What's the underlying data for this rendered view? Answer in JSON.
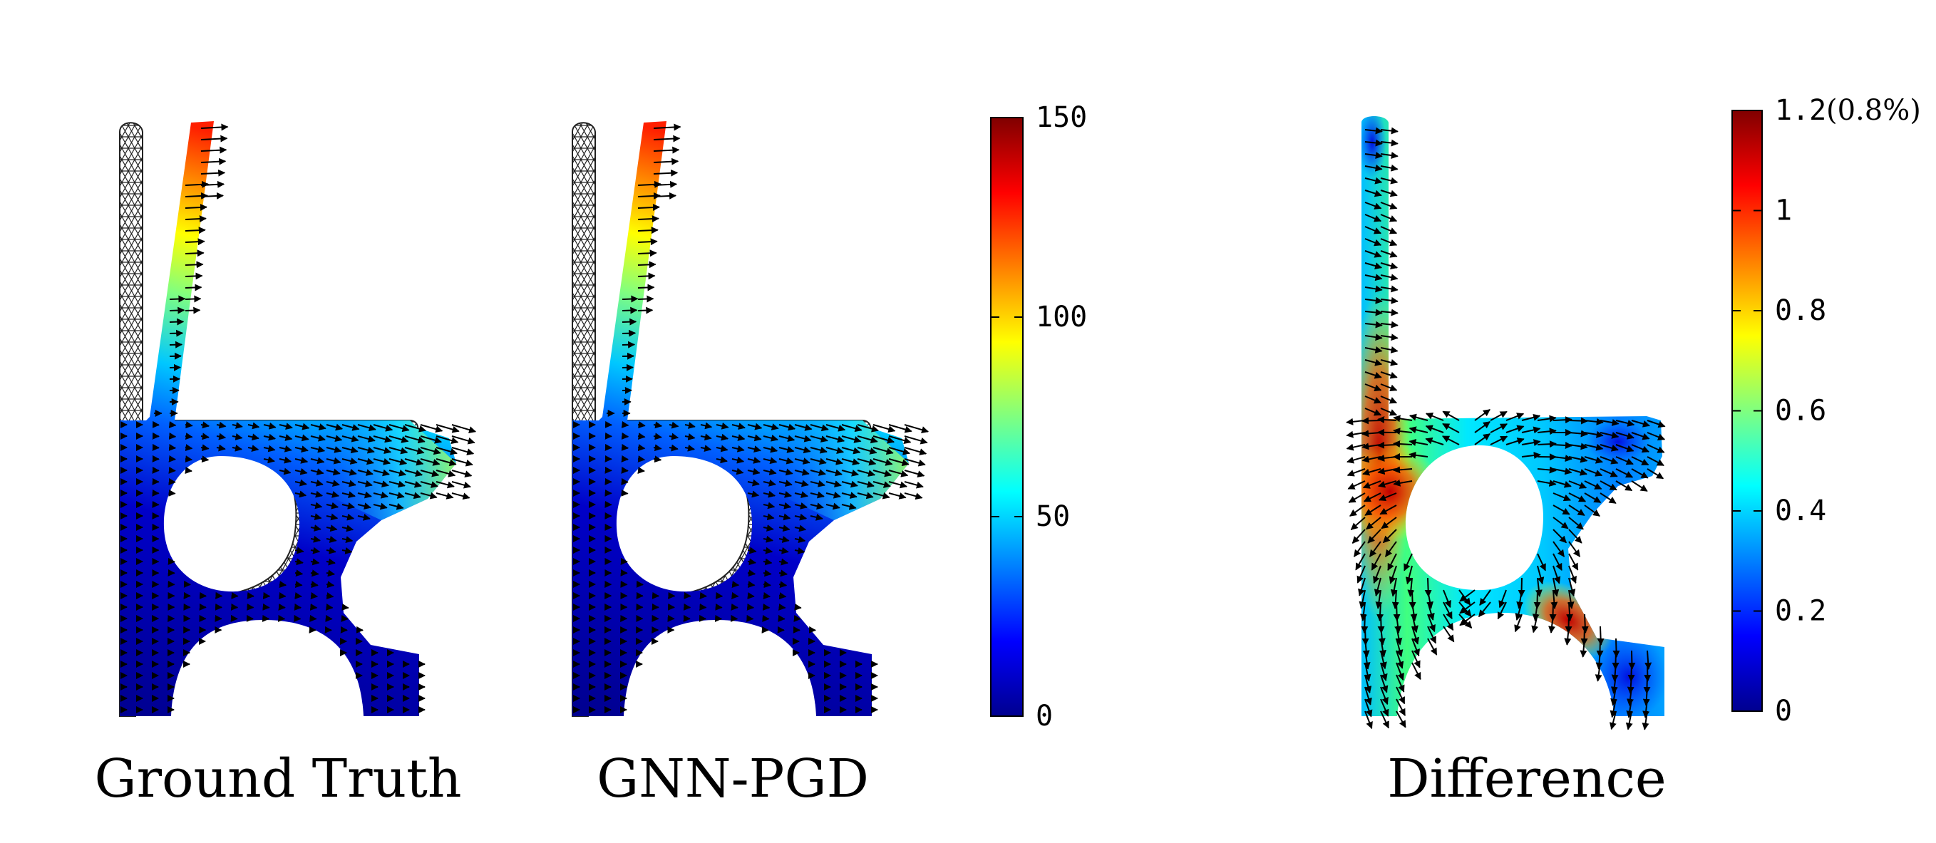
{
  "panels": [
    {
      "id": "ground-truth",
      "caption": "Ground Truth"
    },
    {
      "id": "gnn-pgd",
      "caption": "GNN-PGD"
    },
    {
      "id": "difference",
      "caption": "Difference"
    }
  ],
  "colorbar_main": {
    "ticks": [
      "150",
      "100",
      "50",
      "0"
    ],
    "tick_values": [
      150,
      100,
      50,
      0
    ],
    "range": [
      0,
      150
    ]
  },
  "colorbar_diff": {
    "ticks": [
      "1.2",
      "1",
      "0.8",
      "0.6",
      "0.4",
      "0.2",
      "0"
    ],
    "tick_values": [
      1.2,
      1,
      0.8,
      0.6,
      0.4,
      0.2,
      0
    ],
    "range": [
      0,
      1.2
    ],
    "top_note": "(0.8%)"
  },
  "colormap": "jet"
}
